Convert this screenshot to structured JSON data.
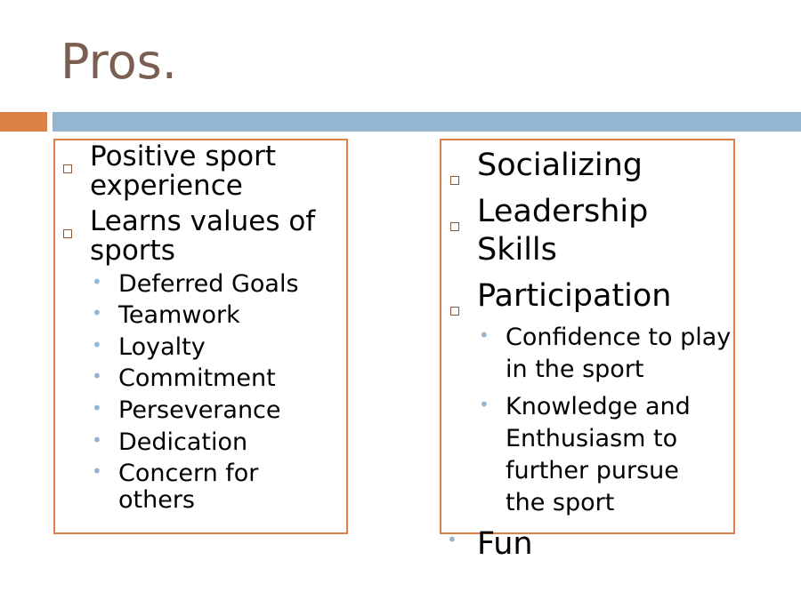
{
  "slide": {
    "title": "Pros."
  },
  "left_box": {
    "items": [
      {
        "text": "Positive sport experience",
        "level": 1
      },
      {
        "text": "Learns values of sports",
        "level": 1
      }
    ],
    "subitems": [
      "Deferred Goals",
      "Teamwork",
      "Loyalty",
      "Commitment",
      "Perseverance",
      "Dedication",
      "Concern for others"
    ]
  },
  "right_box": {
    "items": [
      "Socializing",
      "Leadership Skills",
      "Participation"
    ],
    "subitems": [
      "Confidence to play in the sport",
      "Knowledge and Enthusiasm to further pursue the sport"
    ],
    "trailing_item": "Fun"
  },
  "colors": {
    "title": "#7a5e51",
    "accent_orange": "#dd8047",
    "accent_blue": "#94b6d2"
  },
  "icons": {
    "level1_bullet": "hollow-square-icon",
    "level2_bullet": "dot-icon"
  }
}
